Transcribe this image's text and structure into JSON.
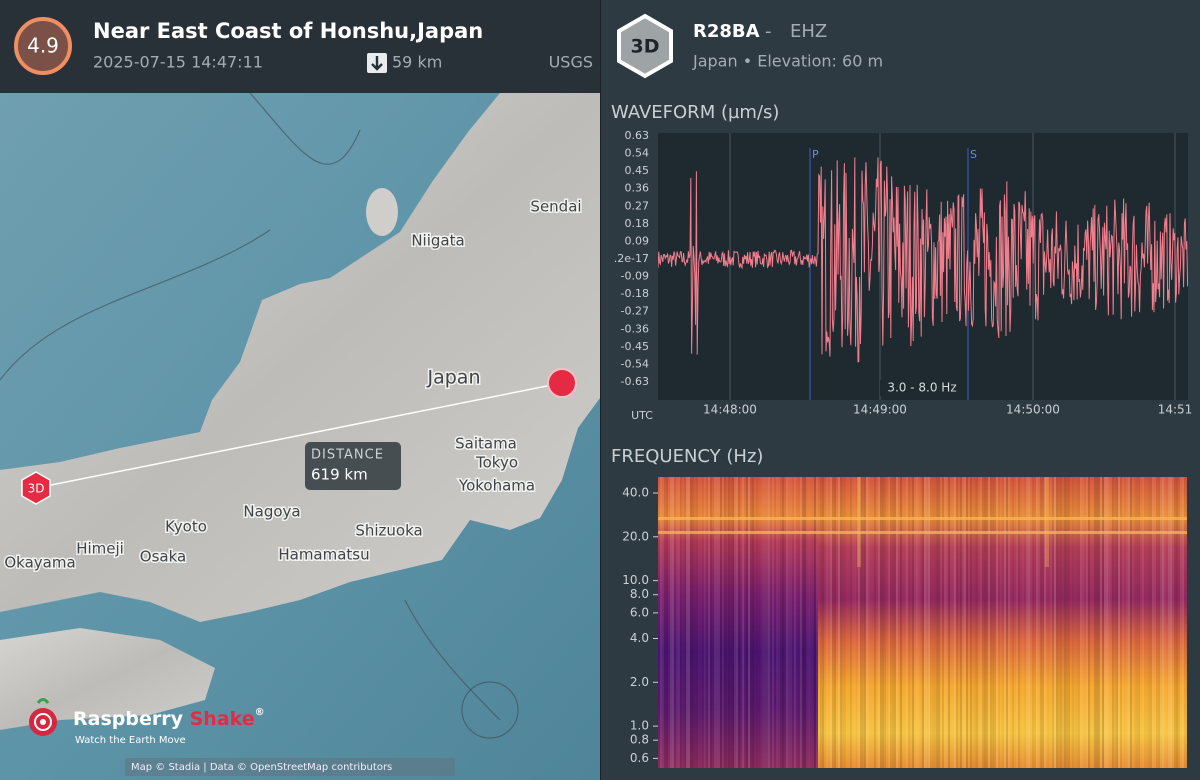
{
  "event": {
    "magnitude": "4.9",
    "title": "Near East Coast of Honshu,Japan",
    "time": "2025-07-15 14:47:11",
    "depth": "59 km",
    "source": "USGS"
  },
  "station": {
    "badge": "3D",
    "code": "R28BA",
    "separator": "-",
    "channel": "EHZ",
    "location": "Japan • Elevation: 60 m"
  },
  "map": {
    "labels": [
      "Sendai",
      "Niigata",
      "Japan",
      "Saitama",
      "Tokyo",
      "Yokohama",
      "Kyoto",
      "Nagoya",
      "Shizuoka",
      "Hamamatsu",
      "Himeji",
      "Osaka",
      "Okayama"
    ],
    "distance_label": "DISTANCE",
    "distance": "619 km",
    "station_marker": "3D",
    "logo_1": "Raspberry",
    "logo_2": "Shake",
    "logo_mark": "®",
    "tagline": "Watch the Earth Move",
    "attribution": "Map © Stadia | Data © OpenStreetMap contributors"
  },
  "waveform": {
    "title": "WAVEFORM (µm/s)",
    "yticks": [
      0.63,
      0.54,
      0.45,
      0.36,
      0.27,
      0.18,
      0.09,
      {
        "value": 2e-18,
        "label": ".2e-17"
      },
      -0.09,
      -0.18,
      -0.27,
      -0.36,
      -0.45,
      -0.54,
      -0.63
    ],
    "x_axis_label": "UTC",
    "xticks": [
      "14:48:00",
      "14:49:00",
      "14:50:00",
      "14:51"
    ],
    "phases": [
      "P",
      "S"
    ],
    "filter": "3.0 - 8.0 Hz"
  },
  "frequency": {
    "title": "FREQUENCY (Hz)",
    "yticks": [
      {
        "value": 40,
        "label": "40.0"
      },
      {
        "value": 20,
        "label": "20.0"
      },
      {
        "value": 10,
        "label": "10.0"
      },
      {
        "value": 8,
        "label": "8.0"
      },
      {
        "value": 6,
        "label": "6.0"
      },
      {
        "value": 4,
        "label": "4.0"
      },
      {
        "value": 2,
        "label": "2.0"
      },
      {
        "value": 1,
        "label": "1.0"
      },
      0.8,
      0.6
    ]
  }
}
